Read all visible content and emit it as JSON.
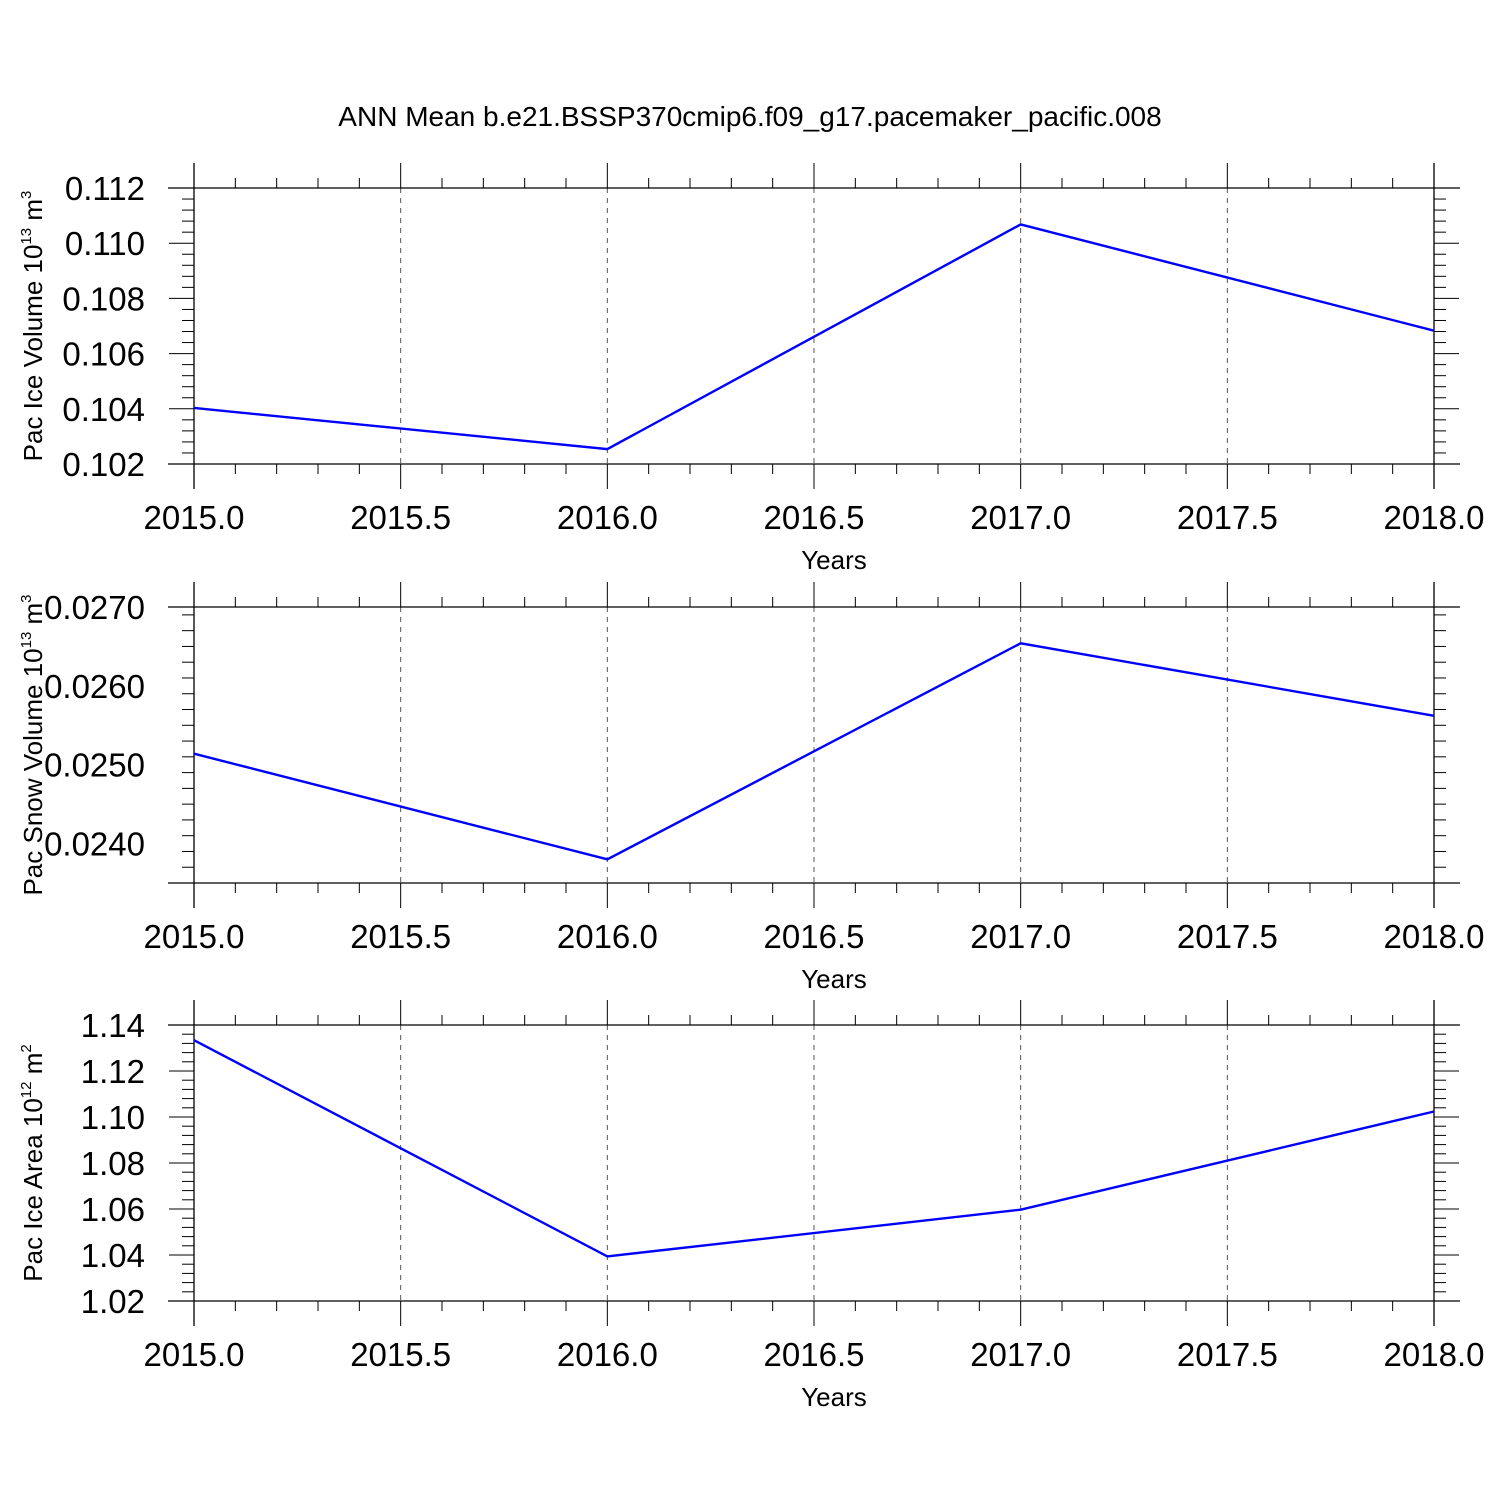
{
  "title": "ANN Mean b.e21.BSSP370cmip6.f09_g17.pacemaker_pacific.008",
  "chart_data": [
    {
      "type": "line",
      "x": [
        2015.0,
        2016.0,
        2017.0,
        2018.0
      ],
      "series": [
        {
          "values": [
            0.10403,
            0.10254,
            0.11068,
            0.10683
          ],
          "color": "#0000ff"
        }
      ],
      "xlabel": "Years",
      "ylabel": {
        "text": "Pac Ice Volume 10",
        "exp": "13",
        "unit": " m",
        "unit_exp": "3"
      },
      "xlim": [
        2015.0,
        2018.0
      ],
      "ylim": [
        0.102,
        0.112
      ],
      "xticks": [
        "2015.0",
        "2015.5",
        "2016.0",
        "2016.5",
        "2017.0",
        "2017.5",
        "2018.0"
      ],
      "yticks": [
        "0.102",
        "0.104",
        "0.106",
        "0.108",
        "0.110",
        "0.112"
      ],
      "grid": "vertical dashed"
    },
    {
      "type": "line",
      "x": [
        2015.0,
        2016.0,
        2017.0,
        2018.0
      ],
      "series": [
        {
          "values": [
            0.02514,
            0.0238,
            0.02654,
            0.02562
          ],
          "color": "#0000ff"
        }
      ],
      "xlabel": "Years",
      "ylabel": {
        "text": "Pac Snow Volume 10",
        "exp": "13",
        "unit": " m",
        "unit_exp": "3"
      },
      "xlim": [
        2015.0,
        2018.0
      ],
      "ylim": [
        0.0235,
        0.027
      ],
      "xticks": [
        "2015.0",
        "2015.5",
        "2016.0",
        "2016.5",
        "2017.0",
        "2017.5",
        "2018.0"
      ],
      "yticks": [
        "0.0240",
        "0.0250",
        "0.0260",
        "0.0270"
      ],
      "grid": "vertical dashed"
    },
    {
      "type": "line",
      "x": [
        2015.0,
        2016.0,
        2017.0,
        2018.0
      ],
      "series": [
        {
          "values": [
            1.1334,
            1.0394,
            1.0597,
            1.1024
          ],
          "color": "#0000ff"
        }
      ],
      "xlabel": "Years",
      "ylabel": {
        "text": "Pac Ice Area 10",
        "exp": "12",
        "unit": " m",
        "unit_exp": "2"
      },
      "xlim": [
        2015.0,
        2018.0
      ],
      "ylim": [
        1.02,
        1.14
      ],
      "xticks": [
        "2015.0",
        "2015.5",
        "2016.0",
        "2016.5",
        "2017.0",
        "2017.5",
        "2018.0"
      ],
      "yticks": [
        "1.02",
        "1.04",
        "1.06",
        "1.08",
        "1.10",
        "1.12",
        "1.14"
      ],
      "grid": "vertical dashed"
    }
  ]
}
